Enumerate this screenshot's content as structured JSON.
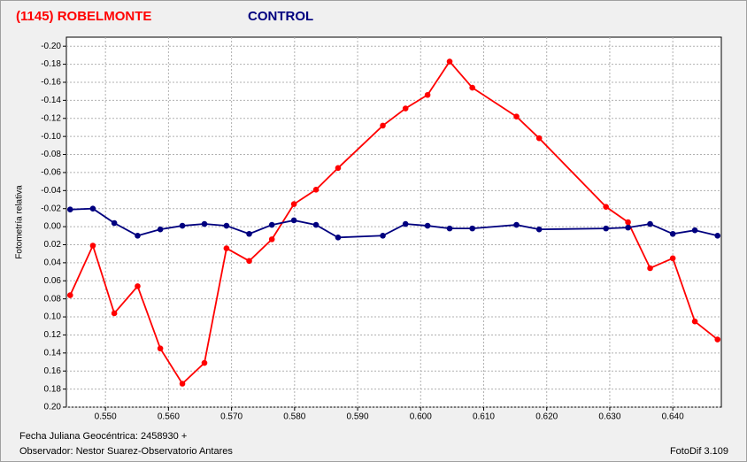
{
  "chart_data": {
    "type": "line",
    "ylabel": "Fotometría relativa",
    "xlabel": "Fecha Juliana Geocéntrica: 2458930 +",
    "observer": "Observador: Nestor Suarez-Observatorio Antares",
    "software": "FotoDif 3.109",
    "inverted_y": true,
    "grid": true,
    "xlim": [
      0.5438,
      0.6477
    ],
    "ylim": [
      0.2,
      -0.21
    ],
    "xticks": [
      {
        "value": 0.55,
        "label": "0.550"
      },
      {
        "value": 0.56,
        "label": "0.560"
      },
      {
        "value": 0.57,
        "label": "0.570"
      },
      {
        "value": 0.58,
        "label": "0.580"
      },
      {
        "value": 0.59,
        "label": "0.590"
      },
      {
        "value": 0.6,
        "label": "0.600"
      },
      {
        "value": 0.61,
        "label": "0.610"
      },
      {
        "value": 0.62,
        "label": "0.620"
      },
      {
        "value": 0.63,
        "label": "0.630"
      },
      {
        "value": 0.64,
        "label": "0.640"
      }
    ],
    "yticks": [
      {
        "value": -0.2,
        "label": "-0.20"
      },
      {
        "value": -0.18,
        "label": "-0.18"
      },
      {
        "value": -0.16,
        "label": "-0.16"
      },
      {
        "value": -0.14,
        "label": "-0.14"
      },
      {
        "value": -0.12,
        "label": "-0.12"
      },
      {
        "value": -0.1,
        "label": "-0.10"
      },
      {
        "value": -0.08,
        "label": "-0.08"
      },
      {
        "value": -0.06,
        "label": "-0.06"
      },
      {
        "value": -0.04,
        "label": "-0.04"
      },
      {
        "value": -0.02,
        "label": "-0.02"
      },
      {
        "value": 0,
        "label": "0.00"
      },
      {
        "value": 0.02,
        "label": "0.02"
      },
      {
        "value": 0.04,
        "label": "0.04"
      },
      {
        "value": 0.06,
        "label": "0.06"
      },
      {
        "value": 0.08,
        "label": "0.08"
      },
      {
        "value": 0.1,
        "label": "0.10"
      },
      {
        "value": 0.12,
        "label": "0.12"
      },
      {
        "value": 0.14,
        "label": "0.14"
      },
      {
        "value": 0.16,
        "label": "0.16"
      },
      {
        "value": 0.18,
        "label": "0.18"
      },
      {
        "value": 0.2,
        "label": "0.20"
      }
    ],
    "x": [
      0.5444,
      0.548,
      0.5514,
      0.5551,
      0.5587,
      0.5622,
      0.5657,
      0.5692,
      0.5728,
      0.5764,
      0.5799,
      0.5834,
      0.5869,
      0.594,
      0.5976,
      0.6011,
      0.6046,
      0.6082,
      0.6152,
      0.6188,
      0.6294,
      0.6329,
      0.6364,
      0.64,
      0.6435,
      0.6471
    ],
    "series": [
      {
        "name": "(1145) ROBELMONTE",
        "color": "#ff0000",
        "values": [
          0.076,
          0.021,
          0.096,
          0.066,
          0.135,
          0.174,
          0.151,
          0.024,
          0.038,
          0.014,
          -0.025,
          -0.041,
          -0.065,
          -0.112,
          -0.131,
          -0.146,
          -0.183,
          -0.154,
          -0.122,
          -0.098,
          -0.022,
          -0.005,
          0.046,
          0.035,
          0.105,
          0.125
        ]
      },
      {
        "name": "CONTROL",
        "color": "#00007f",
        "values": [
          -0.019,
          -0.02,
          -0.004,
          0.01,
          0.003,
          -0.001,
          -0.003,
          -0.001,
          0.008,
          -0.002,
          -0.007,
          -0.002,
          0.012,
          0.01,
          -0.003,
          -0.001,
          0.002,
          0.002,
          -0.002,
          0.003,
          0.002,
          0.001,
          -0.003,
          0.008,
          0.004,
          0.01
        ]
      }
    ]
  }
}
